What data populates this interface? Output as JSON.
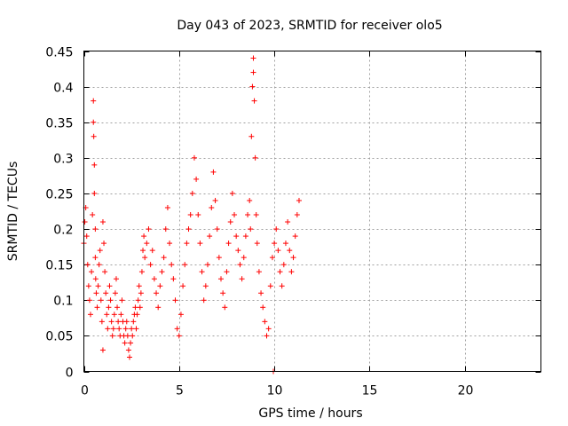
{
  "chart_data": {
    "type": "scatter",
    "title": "Day 043 of 2023, SRMTID for receiver olo5",
    "xlabel": "GPS time / hours",
    "ylabel": "SRMTID / TECUs",
    "xlim": [
      0,
      24
    ],
    "ylim": [
      0,
      0.45
    ],
    "x_ticks": [
      "0",
      "5",
      "10",
      "15",
      "20"
    ],
    "x_tick_values": [
      0,
      5,
      10,
      15,
      20
    ],
    "y_ticks": [
      "0",
      "0.05",
      "0.1",
      "0.15",
      "0.2",
      "0.25",
      "0.3",
      "0.35",
      "0.4",
      "0.45"
    ],
    "y_tick_values": [
      0,
      0.05,
      0.1,
      0.15,
      0.2,
      0.25,
      0.3,
      0.35,
      0.4,
      0.45
    ],
    "grid": true,
    "marker": "+",
    "color": "#ff0000",
    "series": [
      {
        "name": "olo5",
        "x": [
          0.0,
          0.05,
          0.1,
          0.15,
          0.2,
          0.25,
          0.3,
          0.35,
          0.4,
          0.45,
          0.5,
          0.5,
          0.52,
          0.55,
          0.55,
          0.6,
          0.6,
          0.62,
          0.65,
          0.7,
          0.75,
          0.8,
          0.85,
          0.9,
          0.95,
          1.0,
          1.0,
          1.05,
          1.1,
          1.15,
          1.2,
          1.25,
          1.3,
          1.35,
          1.4,
          1.45,
          1.5,
          1.55,
          1.6,
          1.65,
          1.7,
          1.75,
          1.8,
          1.85,
          1.9,
          1.95,
          2.0,
          2.05,
          2.1,
          2.15,
          2.2,
          2.25,
          2.3,
          2.35,
          2.4,
          2.45,
          2.5,
          2.55,
          2.6,
          2.65,
          2.7,
          2.75,
          2.8,
          2.85,
          2.9,
          2.95,
          3.0,
          3.05,
          3.1,
          3.15,
          3.2,
          3.3,
          3.4,
          3.5,
          3.6,
          3.7,
          3.8,
          3.9,
          4.0,
          4.1,
          4.2,
          4.3,
          4.4,
          4.5,
          4.6,
          4.7,
          4.8,
          4.9,
          5.0,
          5.1,
          5.2,
          5.3,
          5.4,
          5.5,
          5.6,
          5.7,
          5.8,
          5.9,
          6.0,
          6.1,
          6.2,
          6.3,
          6.4,
          6.5,
          6.6,
          6.7,
          6.8,
          6.9,
          7.0,
          7.1,
          7.2,
          7.3,
          7.4,
          7.5,
          7.6,
          7.7,
          7.8,
          7.9,
          8.0,
          8.1,
          8.2,
          8.3,
          8.4,
          8.5,
          8.6,
          8.7,
          8.75,
          8.8,
          8.85,
          8.9,
          8.9,
          8.95,
          9.0,
          9.05,
          9.1,
          9.2,
          9.3,
          9.4,
          9.5,
          9.6,
          9.7,
          9.8,
          9.9,
          9.95,
          10.0,
          10.1,
          10.2,
          10.3,
          10.4,
          10.5,
          10.6,
          10.7,
          10.8,
          10.9,
          11.0,
          11.1,
          11.2,
          11.3
        ],
        "y": [
          0.18,
          0.21,
          0.23,
          0.19,
          0.15,
          0.12,
          0.1,
          0.08,
          0.14,
          0.22,
          0.38,
          0.35,
          0.33,
          0.29,
          0.25,
          0.2,
          0.16,
          0.13,
          0.11,
          0.09,
          0.12,
          0.15,
          0.17,
          0.1,
          0.07,
          0.03,
          0.21,
          0.18,
          0.14,
          0.11,
          0.08,
          0.06,
          0.09,
          0.12,
          0.1,
          0.07,
          0.05,
          0.06,
          0.08,
          0.11,
          0.13,
          0.09,
          0.07,
          0.06,
          0.05,
          0.08,
          0.1,
          0.07,
          0.05,
          0.04,
          0.06,
          0.07,
          0.05,
          0.03,
          0.02,
          0.04,
          0.06,
          0.05,
          0.07,
          0.08,
          0.09,
          0.06,
          0.08,
          0.1,
          0.12,
          0.09,
          0.11,
          0.14,
          0.17,
          0.19,
          0.16,
          0.18,
          0.2,
          0.15,
          0.17,
          0.13,
          0.11,
          0.09,
          0.12,
          0.14,
          0.16,
          0.2,
          0.23,
          0.18,
          0.15,
          0.13,
          0.1,
          0.06,
          0.05,
          0.08,
          0.12,
          0.15,
          0.18,
          0.2,
          0.22,
          0.25,
          0.3,
          0.27,
          0.22,
          0.18,
          0.14,
          0.1,
          0.12,
          0.15,
          0.19,
          0.23,
          0.28,
          0.24,
          0.2,
          0.16,
          0.13,
          0.11,
          0.09,
          0.14,
          0.18,
          0.21,
          0.25,
          0.22,
          0.19,
          0.17,
          0.15,
          0.13,
          0.16,
          0.19,
          0.22,
          0.24,
          0.2,
          0.33,
          0.4,
          0.44,
          0.42,
          0.38,
          0.3,
          0.22,
          0.18,
          0.14,
          0.11,
          0.09,
          0.07,
          0.05,
          0.06,
          0.12,
          0.16,
          0.0,
          0.18,
          0.2,
          0.17,
          0.14,
          0.12,
          0.15,
          0.18,
          0.21,
          0.17,
          0.14,
          0.16,
          0.19,
          0.22,
          0.24
        ]
      }
    ]
  }
}
